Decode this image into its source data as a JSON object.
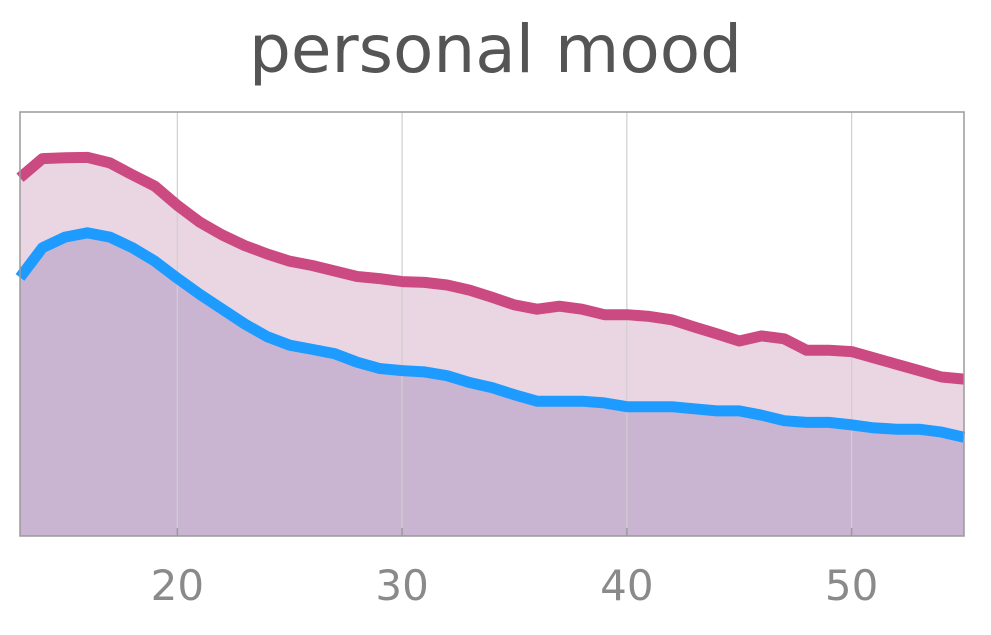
{
  "chart_data": {
    "type": "area",
    "title": "personal mood",
    "xlabel": "",
    "ylabel": "",
    "xlim": [
      13,
      55
    ],
    "ylim": [
      0,
      1
    ],
    "x_ticks": [
      20,
      30,
      40,
      50
    ],
    "y_ticks_labeled": false,
    "grid": "vertical",
    "colors": {
      "upper_line": "#cc4a82",
      "upper_fill": "#ead6e2",
      "lower_line": "#1e9bff",
      "lower_fill": "#c9b5d2",
      "grid": "#cfcfcf",
      "frame": "#9a9a9a"
    },
    "x": [
      13,
      14,
      15,
      16,
      17,
      18,
      19,
      20,
      21,
      22,
      23,
      24,
      25,
      26,
      27,
      28,
      29,
      30,
      31,
      32,
      33,
      34,
      35,
      36,
      37,
      38,
      39,
      40,
      41,
      42,
      43,
      44,
      45,
      46,
      47,
      48,
      49,
      50,
      51,
      52,
      53,
      54,
      55
    ],
    "series": [
      {
        "values": [
          0.845,
          0.89,
          0.892,
          0.893,
          0.88,
          0.852,
          0.825,
          0.78,
          0.74,
          0.71,
          0.685,
          0.665,
          0.648,
          0.638,
          0.625,
          0.612,
          0.607,
          0.6,
          0.598,
          0.592,
          0.58,
          0.563,
          0.545,
          0.535,
          0.542,
          0.535,
          0.522,
          0.522,
          0.518,
          0.51,
          0.493,
          0.477,
          0.46,
          0.472,
          0.465,
          0.438,
          0.438,
          0.435,
          0.42,
          0.405,
          0.39,
          0.375,
          0.37
        ]
      },
      {
        "values": [
          0.61,
          0.68,
          0.705,
          0.715,
          0.705,
          0.68,
          0.648,
          0.608,
          0.57,
          0.535,
          0.5,
          0.47,
          0.45,
          0.44,
          0.43,
          0.41,
          0.395,
          0.39,
          0.387,
          0.378,
          0.362,
          0.35,
          0.333,
          0.318,
          0.318,
          0.318,
          0.314,
          0.305,
          0.305,
          0.305,
          0.3,
          0.295,
          0.295,
          0.285,
          0.272,
          0.268,
          0.268,
          0.262,
          0.255,
          0.252,
          0.252,
          0.245,
          0.233
        ]
      }
    ]
  }
}
